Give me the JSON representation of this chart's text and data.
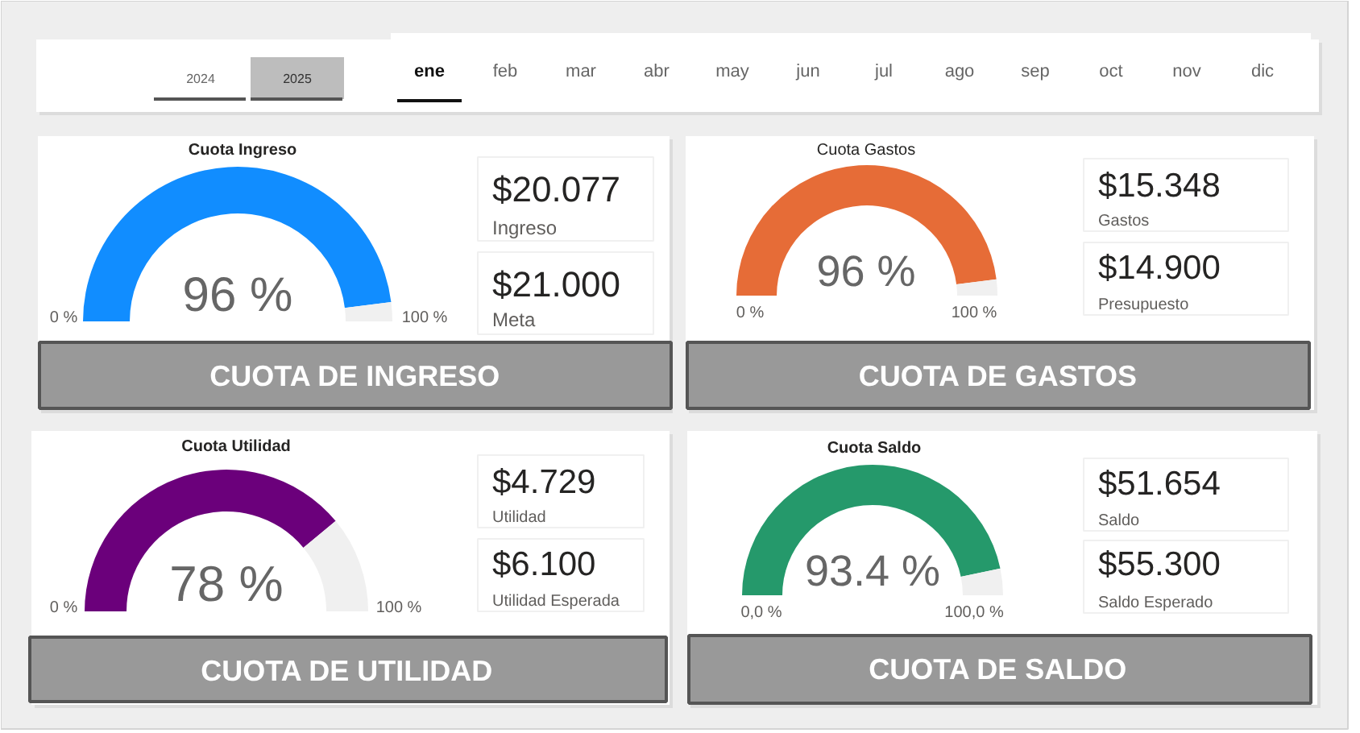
{
  "chart_data": [
    {
      "type": "other",
      "annotations": [
        "2024",
        "2025"
      ],
      "categories": [
        "ene",
        "feb",
        "mar",
        "abr",
        "may",
        "jun",
        "jul",
        "ago",
        "sep",
        "oct",
        "nov",
        "dic"
      ]
    },
    {
      "type": "donut",
      "title": "Cuota Ingreso",
      "categories": [
        null,
        null
      ],
      "values": [
        96,
        4
      ],
      "colors": [
        "#118dff",
        "#f0f0f0"
      ],
      "value_labels": [
        "96 %",
        null
      ],
      "annotations": [
        "0 %",
        "100 %"
      ]
    },
    {
      "type": "other",
      "annotations": [
        "$20.077",
        "Ingreso",
        "$21.000",
        "Meta",
        "CUOTA DE INGRESO"
      ]
    },
    {
      "type": "donut",
      "title": "Cuota Gastos",
      "categories": [
        null,
        null
      ],
      "values": [
        96,
        4
      ],
      "colors": [
        "#e66c37",
        "#f0f0f0"
      ],
      "value_labels": [
        "96 %",
        null
      ],
      "annotations": [
        "0 %",
        "100 %"
      ]
    },
    {
      "type": "other",
      "annotations": [
        "$15.348",
        "Gastos",
        "$14.900",
        "Presupuesto",
        "CUOTA DE GASTOS"
      ]
    },
    {
      "type": "donut",
      "title": "Cuota Utilidad",
      "categories": [
        null,
        null
      ],
      "values": [
        78,
        22
      ],
      "colors": [
        "#6b007b",
        "#f0f0f0"
      ],
      "value_labels": [
        "78 %",
        null
      ],
      "annotations": [
        "0 %",
        "100 %"
      ]
    },
    {
      "type": "other",
      "annotations": [
        "$4.729",
        "Utilidad",
        "$6.100",
        "Utilidad Esperada",
        "CUOTA DE UTILIDAD"
      ]
    },
    {
      "type": "donut",
      "title": "Cuota Saldo",
      "categories": [
        null,
        null
      ],
      "values": [
        93.4,
        6.6
      ],
      "colors": [
        "#25996b",
        "#f0f0f0"
      ],
      "value_labels": [
        "93.4 %",
        null
      ],
      "annotations": [
        "0,0 %",
        "100,0 %"
      ]
    },
    {
      "type": "other",
      "annotations": [
        "$51.654",
        "Saldo",
        "$55.300",
        "Saldo Esperado",
        "CUOTA DE SALDO"
      ]
    }
  ]
}
